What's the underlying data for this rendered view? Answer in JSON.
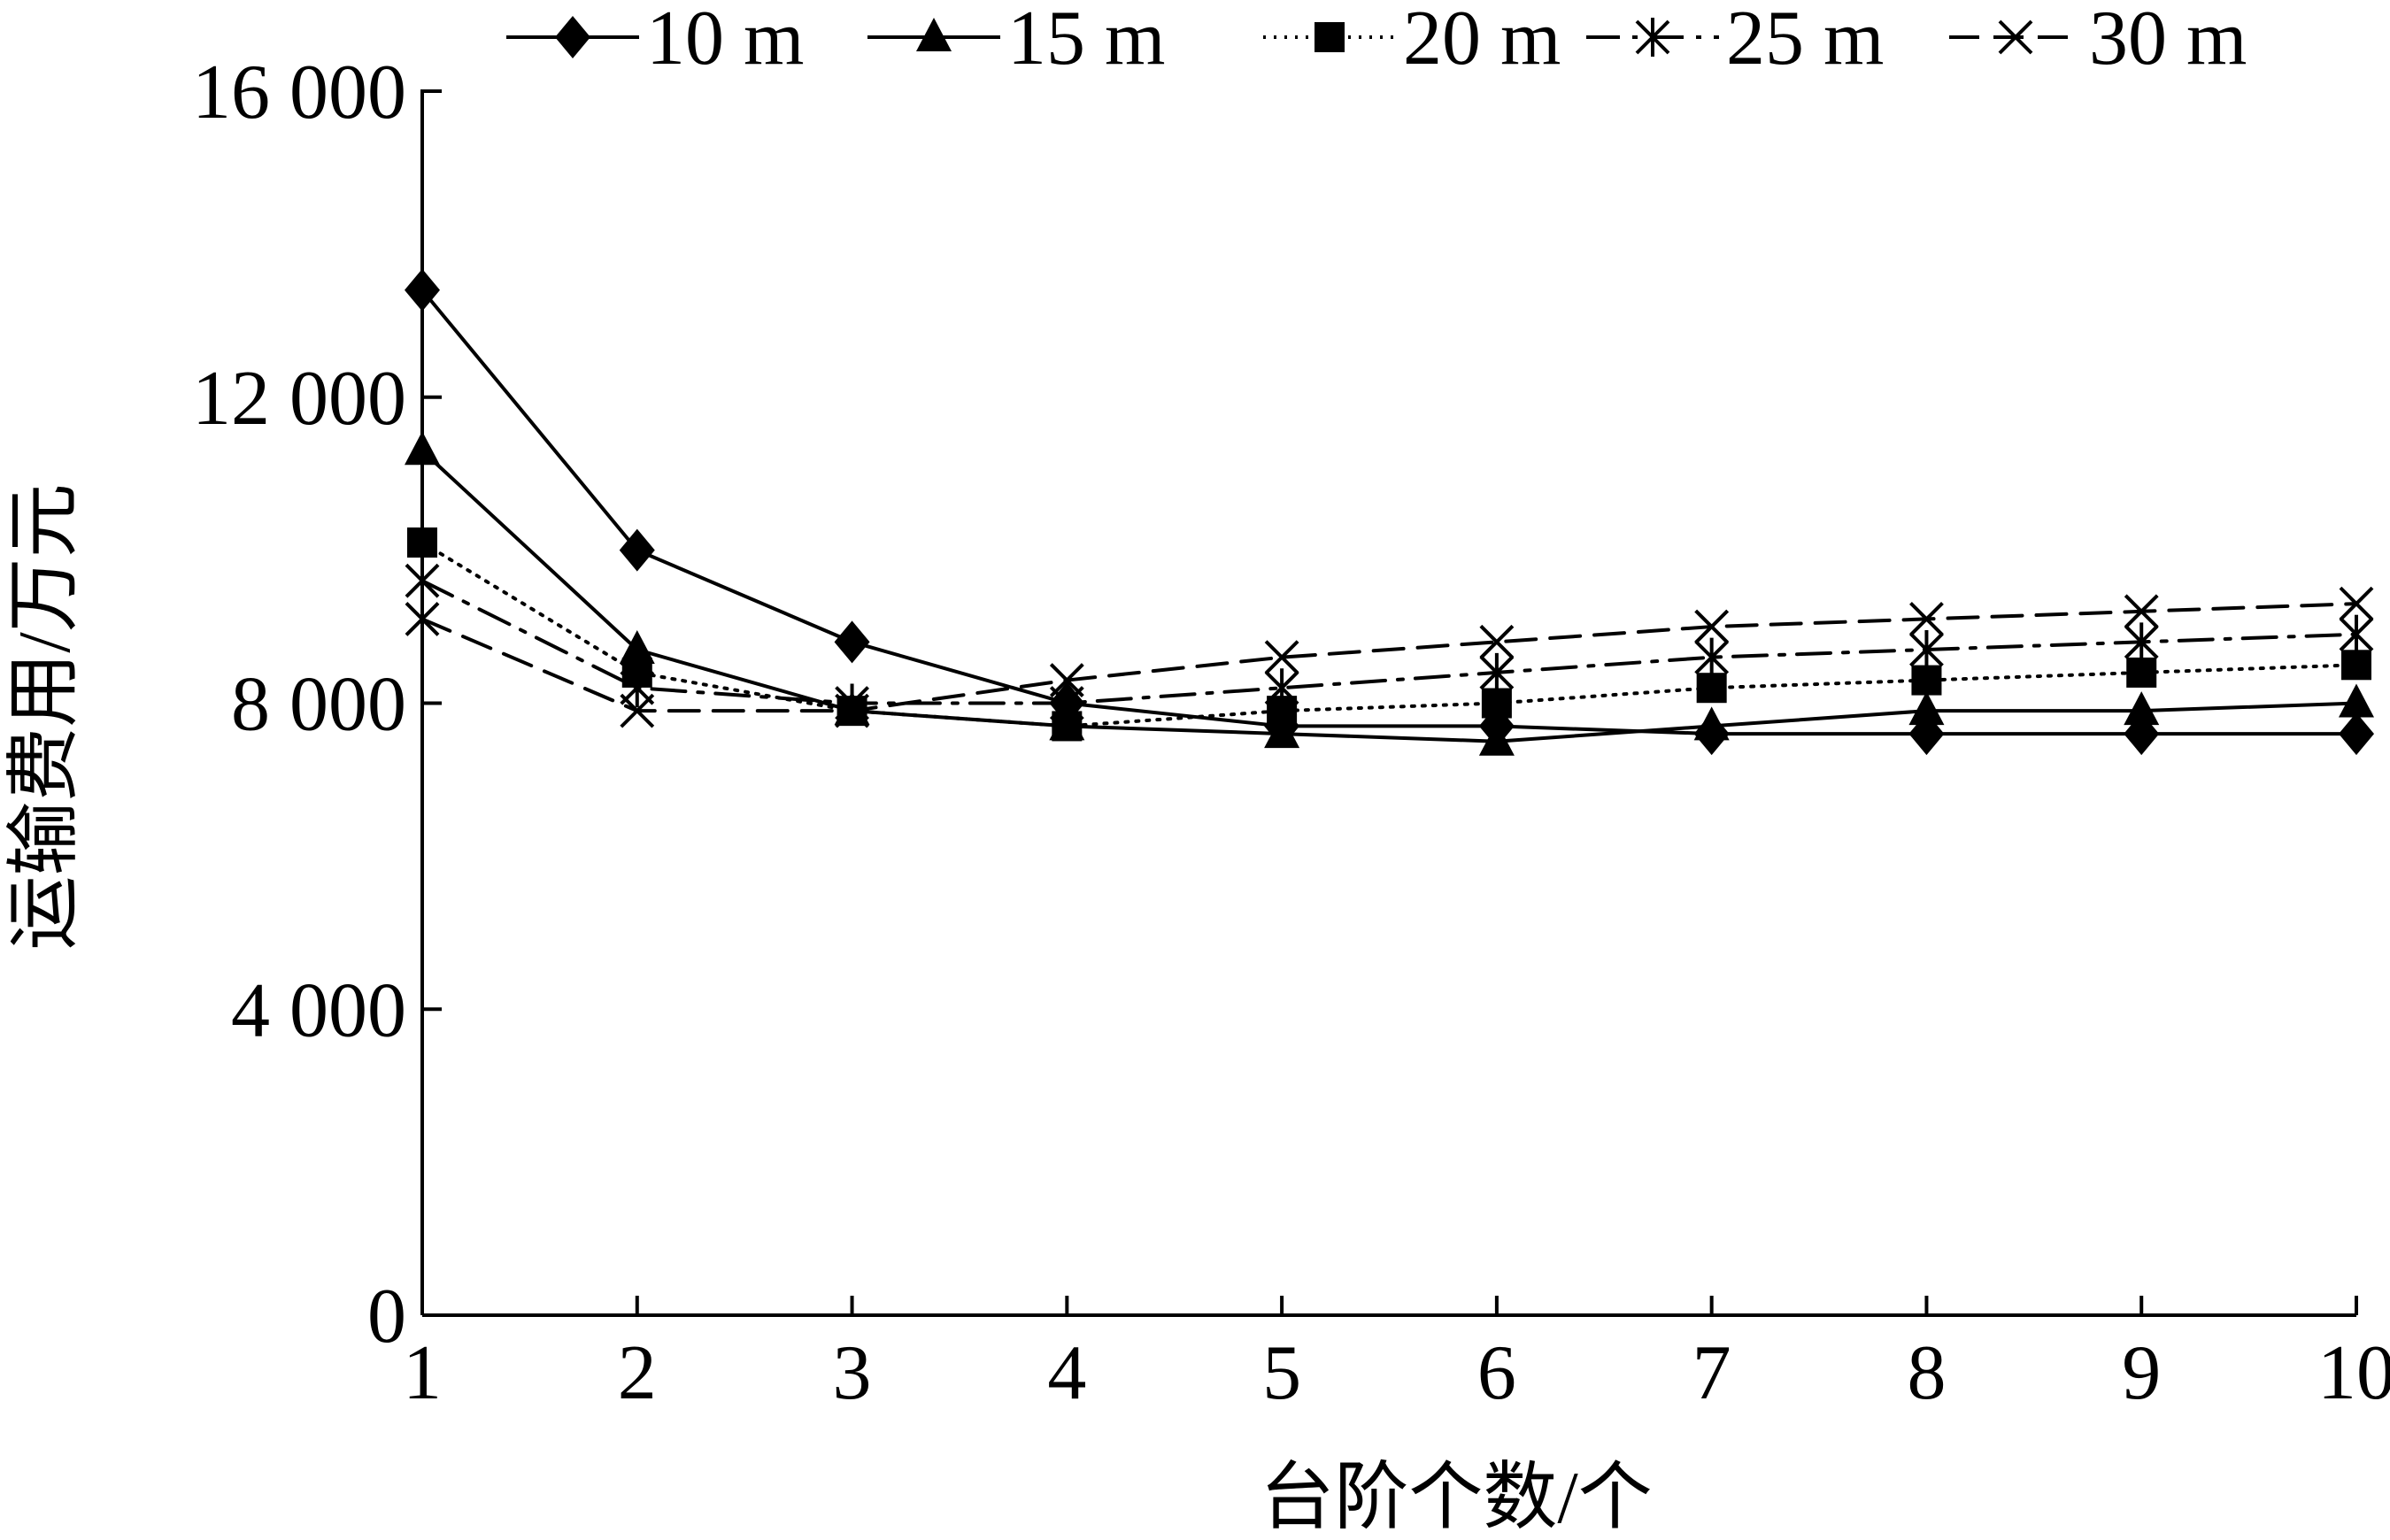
{
  "chart_data": {
    "type": "line",
    "xlabel": "台阶个数/个",
    "ylabel": "运输费用/万元",
    "x": [
      1,
      2,
      3,
      4,
      5,
      6,
      7,
      8,
      9,
      10
    ],
    "x_ticks": [
      "1",
      "2",
      "3",
      "4",
      "5",
      "6",
      "7",
      "8",
      "9",
      "10"
    ],
    "ylim": [
      0,
      16000
    ],
    "xlim": [
      1,
      10
    ],
    "y_ticks": [
      {
        "value": 0,
        "label": "0"
      },
      {
        "value": 4000,
        "label": "4 000"
      },
      {
        "value": 8000,
        "label": "8 000"
      },
      {
        "value": 12000,
        "label": "12 000"
      },
      {
        "value": 16000,
        "label": "16 000"
      }
    ],
    "legend_position": "top",
    "grid": false,
    "series": [
      {
        "name": "10 m",
        "marker": "diamond",
        "line": "solid",
        "values": [
          13400,
          10000,
          8800,
          8000,
          7700,
          7700,
          7600,
          7600,
          7600,
          7600
        ]
      },
      {
        "name": "15 m",
        "marker": "triangle",
        "line": "solid",
        "values": [
          11300,
          8700,
          7900,
          7700,
          7600,
          7500,
          7700,
          7900,
          7900,
          8000
        ]
      },
      {
        "name": "20 m",
        "marker": "square",
        "line": "dotted",
        "values": [
          10100,
          8400,
          7900,
          7700,
          7900,
          8000,
          8200,
          8300,
          8400,
          8500
        ]
      },
      {
        "name": "25 m",
        "marker": "asterisk",
        "line": "dashdot",
        "values": [
          9600,
          8200,
          8000,
          8000,
          8200,
          8400,
          8600,
          8700,
          8800,
          8900
        ]
      },
      {
        "name": "30 m",
        "marker": "x",
        "line": "dashed",
        "values": [
          9100,
          7900,
          7900,
          8300,
          8600,
          8800,
          9000,
          9100,
          9200,
          9300
        ]
      }
    ]
  }
}
